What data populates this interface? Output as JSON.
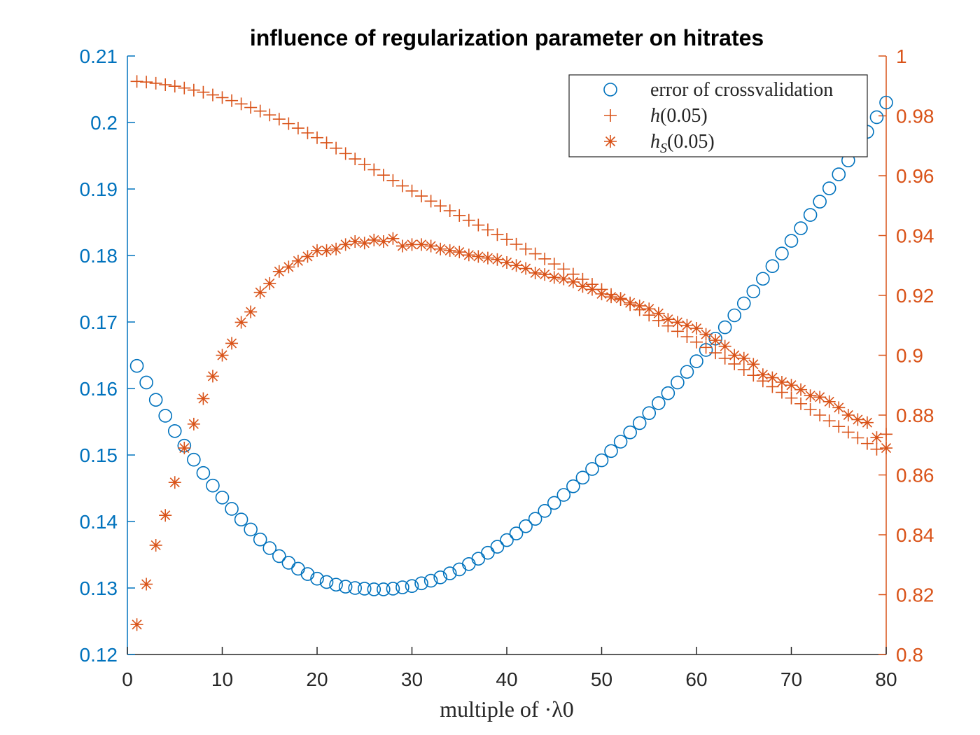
{
  "chart_data": {
    "type": "scatter",
    "title": "influence of regularization parameter on hitrates",
    "xlabel": "multiple of ·λ0",
    "xlim": [
      0,
      80
    ],
    "ylim_left": [
      0.12,
      0.21
    ],
    "ylim_right": [
      0.8,
      1.0
    ],
    "x_ticks": [
      "0",
      "10",
      "20",
      "30",
      "40",
      "50",
      "60",
      "70",
      "80"
    ],
    "y_ticks_left": [
      "0.12",
      "0.13",
      "0.14",
      "0.15",
      "0.16",
      "0.17",
      "0.18",
      "0.19",
      "0.2",
      "0.21"
    ],
    "y_ticks_right": [
      "0.8",
      "0.82",
      "0.84",
      "0.86",
      "0.88",
      "0.9",
      "0.92",
      "0.94",
      "0.96",
      "0.98",
      "1"
    ],
    "legend_position": "top-right",
    "colors": {
      "left_axis": "#0072BD",
      "right_axis": "#D95319",
      "frame": "#262626"
    },
    "x": [
      1,
      2,
      3,
      4,
      5,
      6,
      7,
      8,
      9,
      10,
      11,
      12,
      13,
      14,
      15,
      16,
      17,
      18,
      19,
      20,
      21,
      22,
      23,
      24,
      25,
      26,
      27,
      28,
      29,
      30,
      31,
      32,
      33,
      34,
      35,
      36,
      37,
      38,
      39,
      40,
      41,
      42,
      43,
      44,
      45,
      46,
      47,
      48,
      49,
      50,
      51,
      52,
      53,
      54,
      55,
      56,
      57,
      58,
      59,
      60,
      61,
      62,
      63,
      64,
      65,
      66,
      67,
      68,
      69,
      70,
      71,
      72,
      73,
      74,
      75,
      76,
      77,
      78,
      79,
      80
    ],
    "series": [
      {
        "name": "error of crossvalidation",
        "legend_label": "error of crossvalidation",
        "axis": "left",
        "marker": "circle",
        "values": [
          0.1634,
          0.1609,
          0.1583,
          0.1559,
          0.1536,
          0.1514,
          0.1493,
          0.1473,
          0.1454,
          0.1436,
          0.1419,
          0.1403,
          0.1388,
          0.1373,
          0.136,
          0.1348,
          0.1338,
          0.1329,
          0.1321,
          0.1314,
          0.1309,
          0.1305,
          0.1302,
          0.13,
          0.1299,
          0.1298,
          0.1298,
          0.1299,
          0.1301,
          0.1303,
          0.1307,
          0.1311,
          0.1316,
          0.1322,
          0.1328,
          0.1336,
          0.1344,
          0.1353,
          0.1362,
          0.1372,
          0.1382,
          0.1393,
          0.1404,
          0.1416,
          0.1428,
          0.144,
          0.1453,
          0.1466,
          0.1479,
          0.1492,
          0.1506,
          0.152,
          0.1534,
          0.1548,
          0.1563,
          0.1578,
          0.1593,
          0.1609,
          0.1625,
          0.1641,
          0.1658,
          0.1675,
          0.1692,
          0.171,
          0.1728,
          0.1746,
          0.1765,
          0.1784,
          0.1803,
          0.1822,
          0.1841,
          0.1861,
          0.1881,
          0.1901,
          0.1922,
          0.1943,
          0.1964,
          0.1986,
          0.2008,
          0.203
        ]
      },
      {
        "name": "h(0.05)",
        "legend_label": "h",
        "legend_arg": "(0.05)",
        "axis": "right",
        "marker": "plus",
        "values": [
          0.9915,
          0.9913,
          0.9909,
          0.9904,
          0.9899,
          0.9893,
          0.9886,
          0.9879,
          0.987,
          0.9861,
          0.9851,
          0.984,
          0.9828,
          0.9816,
          0.9803,
          0.9789,
          0.9774,
          0.9759,
          0.9743,
          0.9727,
          0.971,
          0.9692,
          0.9674,
          0.9656,
          0.9638,
          0.962,
          0.9602,
          0.9584,
          0.9566,
          0.9549,
          0.9532,
          0.9515,
          0.9499,
          0.9483,
          0.9467,
          0.9451,
          0.9435,
          0.9419,
          0.9403,
          0.9387,
          0.9371,
          0.9355,
          0.9339,
          0.9322,
          0.9305,
          0.9288,
          0.9271,
          0.9254,
          0.9237,
          0.922,
          0.9203,
          0.9186,
          0.9169,
          0.9152,
          0.9134,
          0.9116,
          0.9098,
          0.908,
          0.9062,
          0.9044,
          0.9026,
          0.9008,
          0.899,
          0.8971,
          0.8952,
          0.8933,
          0.8914,
          0.8895,
          0.8876,
          0.8857,
          0.8838,
          0.8819,
          0.88,
          0.8781,
          0.8762,
          0.8743,
          0.8724,
          0.8705,
          0.8686,
          0.8736
        ]
      },
      {
        "name": "hS(0.05)",
        "legend_label": "h",
        "legend_sub": "S",
        "legend_arg": "(0.05)",
        "axis": "right",
        "marker": "star",
        "values": [
          0.81,
          0.8235,
          0.8365,
          0.8465,
          0.8575,
          0.869,
          0.877,
          0.8855,
          0.893,
          0.9,
          0.904,
          0.911,
          0.9145,
          0.921,
          0.924,
          0.928,
          0.9295,
          0.9315,
          0.933,
          0.935,
          0.935,
          0.9355,
          0.937,
          0.938,
          0.9375,
          0.9385,
          0.938,
          0.939,
          0.9365,
          0.937,
          0.937,
          0.9365,
          0.9355,
          0.935,
          0.9345,
          0.9335,
          0.933,
          0.9325,
          0.932,
          0.931,
          0.93,
          0.929,
          0.9275,
          0.927,
          0.926,
          0.9255,
          0.9245,
          0.923,
          0.922,
          0.9205,
          0.9195,
          0.919,
          0.9175,
          0.9165,
          0.9155,
          0.914,
          0.912,
          0.911,
          0.91,
          0.909,
          0.907,
          0.905,
          0.903,
          0.9,
          0.899,
          0.897,
          0.8935,
          0.8925,
          0.891,
          0.89,
          0.8885,
          0.8865,
          0.886,
          0.8845,
          0.8825,
          0.88,
          0.8785,
          0.8775,
          0.8725,
          0.869
        ]
      }
    ]
  }
}
